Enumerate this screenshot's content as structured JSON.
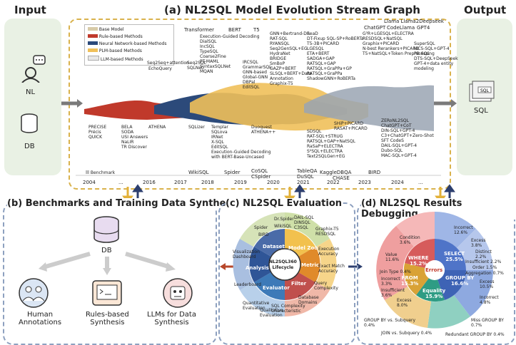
{
  "headers": {
    "input": "Input",
    "title_a": "(a) NL2SQL Model Evolution Stream Graph",
    "output": "Output",
    "title_b": "(b) Benchmarks and Training Data Synthesis",
    "title_c": "(c) NL2SQL Evaluation",
    "title_d": "(d) NL2SQL Results Debugging"
  },
  "input": {
    "nl": "NL",
    "db": "DB"
  },
  "output": {
    "sql": "SQL",
    "icon_text": "SQL"
  },
  "legend": {
    "items": [
      "Base Model",
      "Rule-based Methods",
      "Neural Network-based Methods",
      "PLM-based Methods",
      "LLM-based Methods"
    ],
    "colors": [
      "#d8cba8",
      "#c0392b",
      "#2c4a7a",
      "#f0c05a",
      "#e8e8e8"
    ],
    "benchmark": "Benchmark"
  },
  "years": [
    "2004",
    "...",
    "2016",
    "2017",
    "2018",
    "2019",
    "2020",
    "2021",
    "2022",
    "2023",
    "2024",
    "..."
  ],
  "base_models": [
    {
      "label": "Transformer"
    },
    {
      "label": "BERT"
    },
    {
      "label": "T5"
    },
    {
      "label": "Llama Llama2Deepseek"
    },
    {
      "label": "ChatGPT"
    },
    {
      "label": "CodeLlama"
    },
    {
      "label": "GPT4"
    }
  ],
  "top_methods": {
    "g1": "EchoQuery",
    "g2": "Seq2Seq+attention",
    "g3": "Seq2SQL\nSQLNet",
    "g4": "Execution-Guided Decoding\nDialSQL\nIncSQL\nTypeSQL\nCoarse2Fine\nPT-MAML\nSyntaxSQLNet\nMQAN",
    "g5": "IRCSQL\nGrammarSQL\nGNN-based\nGlobal-GNN\nDBPal\nEditSQL",
    "g6": "GNN+Bertrand-DR\nRAT-SQL\nRYANSQL\nSeq2GenSQL+EG\nHydraNet\nBRIDGE\nSmBoP\nGAZP+BERT\nSLSQL+BERT+Data\nAnnotation\nGraphix-T5",
    "g7": "SeaD\nDT-Fixup SQL-SP+RoBERTa\nT5-3B+PICARD\nLGESQL\nETA+BERT\nSADGA+GAP\nRATSQL+GAP\nRATSQL+GraPPa+GP\nRATSQL+GraPPa\nShadowGNN+RoBERTa",
    "g8": "G³R+LGESQL+ELECTRA\nRESDSQL+NatSQL\nGraphix+PICARD\nN-best Rerankers+PICARD\nT5+NatSQL+Token Preprocessing",
    "g9": "SuperSQL\nMCS-SQL+GPT-4\nPB-SQL\nDTS-SQL+DeepSeek\nGPT-4+data entity\nmodeling"
  },
  "bottom_methods": {
    "b1": "PRECISE\nPrécis\nQUICK",
    "b2": "BELA\nSODA\nUSI Answers\nNaLIR\nTR Discover",
    "b3": "ATHENA",
    "b4": "SQLizer",
    "b5": "Templar\nSQLova\nIRNet\nX-SQL\nEditSQL\nExecution-Guided Decoding\nwith BERT-Base-Uncased",
    "b6": "Duoquest\nATHENA++",
    "b7": "SDSQL\nRAT-SQL+STRUG\nRATSQL+GAP+NatSQL\nRaSaP+ELECTRA\nS²SQL+ELECTRA\nText2SQLGen+EG",
    "b8": "SHiP+PICARD\nRASAT+PICARD",
    "b9": "ZERoNL2SQL\nChatGPT+CoT\nDIN-SQL+GPT-4\nC3+ChatGPT+Zero-Shot\nSFT CodeS\nDAIL-SQL+GPT-4\nDubo-SQL\nMAC-SQL+GPT-4"
  },
  "benchmarks": [
    {
      "label": "WikiSQL"
    },
    {
      "label": "Spider"
    },
    {
      "label": "CoSQL\nCSpider"
    },
    {
      "label": "TableQA\nDuSQL"
    },
    {
      "label": "KaggleDBQA"
    },
    {
      "label": "CHASE"
    },
    {
      "label": "BIRD"
    }
  ],
  "panel_b": {
    "db": "DB",
    "human": "Human\nAnnotations",
    "rules": "Rules-based\nSynthesis",
    "llm": "LLMs for Data\nSynthesis"
  },
  "panel_c": {
    "center": "NL2SQL360\nLifecycle",
    "inner": [
      "Dataset",
      "Model Zoo",
      "Metric",
      "Filter",
      "Evaluator",
      "Analysis"
    ],
    "inner_colors": [
      "#f2c14e",
      "#e08a2a",
      "#d9624b",
      "#c0504d",
      "#3d7ab8",
      "#2f5597"
    ],
    "outer": [
      "Spider",
      "BIRD",
      "Dr.Spider",
      "WikiSQL",
      "DAIL-SQL\nDINSQL\nC3SQL",
      "Graphix-T5\nRESDSQL",
      "Execution\nAccuracy",
      "Exact Match\nAccuracy",
      "Query\nComplexity",
      "Database\nDomains",
      "SQL Complexity\nCharacteristic",
      "Quantitative\nEvaluation",
      "Qualitative\nEvaluation",
      "Leaderboard",
      "Visualization\nDashboard"
    ]
  },
  "panel_d": {
    "center": "Errors",
    "segments": [
      {
        "label": "SELECT",
        "value": "25.5%",
        "color": "#4f74c8"
      },
      {
        "label": "GROUP BY",
        "value": "16.6%",
        "color": "#3e63b5"
      },
      {
        "label": "Equality",
        "value": "15.9%",
        "color": "#2e9c84"
      },
      {
        "label": "FROM",
        "value": "15.3%",
        "color": "#d9a236"
      },
      {
        "label": "WHERE",
        "value": "15.2%",
        "color": "#d65b5b"
      }
    ],
    "outer_labels": [
      "Incorrect\n12.6%",
      "Excess\n3.8%",
      "Distinct\n2.2%",
      "Insufficient 2.2%",
      "Order 1.5%",
      "Aggregation 0.7%",
      "Excess\n10.5%",
      "Incorrect\n4.8%",
      "Join Type 0.4%",
      "Incorrect\n3.3%",
      "Insufficient\n3.6%",
      "Excess\n8.0%",
      "Value\n11.6%",
      "Condition\n3.6%",
      "GROUP BY vs. Subquery\n0.4%",
      "JOIN vs. Subquery 0.4%",
      "Redundant GROUP BY 0.4%",
      "Miss GROUP BY\n0.7%"
    ]
  }
}
